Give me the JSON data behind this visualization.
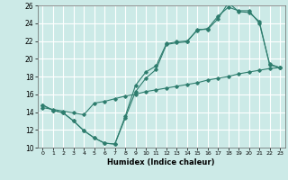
{
  "title": "",
  "xlabel": "Humidex (Indice chaleur)",
  "xlim": [
    -0.5,
    23.5
  ],
  "ylim": [
    10,
    26
  ],
  "xticks": [
    0,
    1,
    2,
    3,
    4,
    5,
    6,
    7,
    8,
    9,
    10,
    11,
    12,
    13,
    14,
    15,
    16,
    17,
    18,
    19,
    20,
    21,
    22,
    23
  ],
  "yticks": [
    10,
    12,
    14,
    16,
    18,
    20,
    22,
    24,
    26
  ],
  "bg_color": "#cceae7",
  "grid_color": "#ffffff",
  "line_color": "#2e7d6e",
  "line1_x": [
    0,
    1,
    2,
    3,
    4,
    5,
    6,
    7,
    8,
    9,
    10,
    11,
    12,
    13,
    14,
    15,
    16,
    17,
    18,
    19,
    20,
    21,
    22,
    23
  ],
  "line1_y": [
    14.8,
    14.2,
    13.9,
    13.0,
    11.9,
    11.1,
    10.5,
    10.4,
    13.3,
    16.3,
    17.8,
    18.8,
    21.6,
    21.8,
    21.9,
    23.3,
    23.3,
    24.5,
    26.3,
    25.3,
    25.2,
    24.2,
    19.3,
    19.0
  ],
  "line2_x": [
    0,
    1,
    2,
    3,
    4,
    5,
    6,
    7,
    8,
    9,
    10,
    11,
    12,
    13,
    14,
    15,
    16,
    17,
    18,
    19,
    20,
    21,
    22,
    23
  ],
  "line2_y": [
    14.8,
    14.2,
    13.9,
    13.0,
    11.9,
    11.1,
    10.5,
    10.4,
    13.5,
    17.0,
    18.5,
    19.2,
    21.7,
    21.9,
    22.0,
    23.2,
    23.4,
    24.8,
    25.8,
    25.4,
    25.4,
    24.0,
    19.4,
    19.0
  ],
  "line3_x": [
    0,
    1,
    2,
    3,
    4,
    5,
    6,
    7,
    8,
    9,
    10,
    11,
    12,
    13,
    14,
    15,
    16,
    17,
    18,
    19,
    20,
    21,
    22,
    23
  ],
  "line3_y": [
    14.5,
    14.3,
    14.1,
    13.9,
    13.7,
    15.0,
    15.2,
    15.5,
    15.8,
    16.0,
    16.3,
    16.5,
    16.7,
    16.9,
    17.1,
    17.3,
    17.6,
    17.8,
    18.0,
    18.3,
    18.5,
    18.7,
    18.9,
    19.0
  ]
}
